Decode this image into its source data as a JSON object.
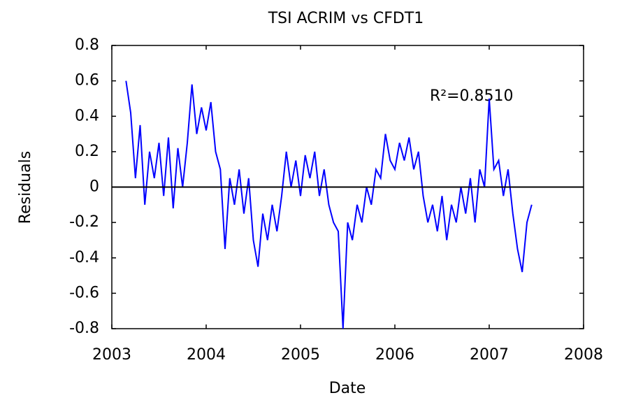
{
  "chart_data": {
    "type": "line",
    "title": "TSI ACRIM vs CFDT1",
    "xlabel": "Date",
    "ylabel": "Residuals",
    "annotation": "R²=0.8510",
    "xlim": [
      2003,
      2008
    ],
    "ylim": [
      -0.8,
      0.8
    ],
    "xticks": [
      2003,
      2004,
      2005,
      2006,
      2007,
      2008
    ],
    "yticks": [
      -0.8,
      -0.6,
      -0.4,
      -0.2,
      0,
      0.2,
      0.4,
      0.6,
      0.8
    ],
    "hline": 0,
    "x": [
      2003.15,
      2003.2,
      2003.25,
      2003.3,
      2003.35,
      2003.4,
      2003.45,
      2003.5,
      2003.55,
      2003.6,
      2003.65,
      2003.7,
      2003.75,
      2003.8,
      2003.85,
      2003.9,
      2003.95,
      2004.0,
      2004.05,
      2004.1,
      2004.15,
      2004.2,
      2004.25,
      2004.3,
      2004.35,
      2004.4,
      2004.45,
      2004.5,
      2004.55,
      2004.6,
      2004.65,
      2004.7,
      2004.75,
      2004.8,
      2004.85,
      2004.9,
      2004.95,
      2005.0,
      2005.05,
      2005.1,
      2005.15,
      2005.2,
      2005.25,
      2005.3,
      2005.35,
      2005.4,
      2005.45,
      2005.5,
      2005.55,
      2005.6,
      2005.65,
      2005.7,
      2005.75,
      2005.8,
      2005.85,
      2005.9,
      2005.95,
      2006.0,
      2006.05,
      2006.1,
      2006.15,
      2006.2,
      2006.25,
      2006.3,
      2006.35,
      2006.4,
      2006.45,
      2006.5,
      2006.55,
      2006.6,
      2006.65,
      2006.7,
      2006.75,
      2006.8,
      2006.85,
      2006.9,
      2006.95,
      2007.0,
      2007.05,
      2007.1,
      2007.15,
      2007.2,
      2007.25,
      2007.3,
      2007.35,
      2007.4,
      2007.45
    ],
    "series": [
      {
        "color": "#0000ff",
        "values": [
          0.6,
          0.42,
          0.05,
          0.35,
          -0.1,
          0.2,
          0.05,
          0.25,
          -0.05,
          0.28,
          -0.12,
          0.22,
          0.0,
          0.25,
          0.58,
          0.3,
          0.45,
          0.32,
          0.48,
          0.2,
          0.1,
          -0.35,
          0.05,
          -0.1,
          0.1,
          -0.15,
          0.05,
          -0.3,
          -0.45,
          -0.15,
          -0.3,
          -0.1,
          -0.25,
          -0.05,
          0.2,
          0.0,
          0.15,
          -0.05,
          0.18,
          0.05,
          0.2,
          -0.05,
          0.1,
          -0.1,
          -0.2,
          -0.25,
          -0.8,
          -0.2,
          -0.3,
          -0.1,
          -0.2,
          0.0,
          -0.1,
          0.1,
          0.05,
          0.3,
          0.15,
          0.1,
          0.25,
          0.15,
          0.28,
          0.1,
          0.2,
          -0.05,
          -0.2,
          -0.1,
          -0.25,
          -0.05,
          -0.3,
          -0.1,
          -0.2,
          0.0,
          -0.15,
          0.05,
          -0.2,
          0.1,
          0.0,
          0.5,
          0.1,
          0.15,
          -0.05,
          0.1,
          -0.15,
          -0.35,
          -0.48,
          -0.2,
          -0.1
        ]
      }
    ]
  }
}
